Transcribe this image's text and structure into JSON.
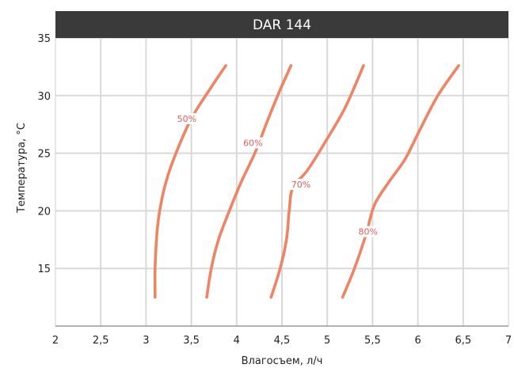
{
  "chart_data": {
    "type": "line",
    "title": "DAR 144",
    "xlabel": "Влагосъем, л/ч",
    "ylabel": "Температура, °С",
    "xlim": [
      2,
      7
    ],
    "ylim": [
      10,
      35
    ],
    "x_ticks": [
      "2",
      "2,5",
      "3",
      "3,5",
      "4",
      "4,5",
      "5",
      "5,5",
      "6",
      "6,5",
      "7"
    ],
    "y_ticks": [
      "15",
      "20",
      "25",
      "30",
      "35"
    ],
    "grid": true,
    "colors": {
      "series": "#ef8464",
      "label_text": "#e35a5a",
      "title_bar": "#3a3a3a"
    },
    "series": [
      {
        "name": "50%",
        "label_at": [
          3.45,
          28
        ],
        "points": [
          [
            3.1,
            12.5
          ],
          [
            3.1,
            15
          ],
          [
            3.12,
            18
          ],
          [
            3.15,
            20
          ],
          [
            3.22,
            22.5
          ],
          [
            3.33,
            25
          ],
          [
            3.5,
            28
          ],
          [
            3.7,
            30.5
          ],
          [
            3.88,
            32.6
          ]
        ]
      },
      {
        "name": "60%",
        "label_at": [
          4.18,
          25.9
        ],
        "points": [
          [
            3.67,
            12.5
          ],
          [
            3.72,
            15
          ],
          [
            3.8,
            17.5
          ],
          [
            3.92,
            20
          ],
          [
            4.05,
            22.5
          ],
          [
            4.2,
            25
          ],
          [
            4.35,
            28
          ],
          [
            4.48,
            30.5
          ],
          [
            4.6,
            32.6
          ]
        ]
      },
      {
        "name": "70%",
        "label_at": [
          4.71,
          22.3
        ],
        "points": [
          [
            4.38,
            12.5
          ],
          [
            4.48,
            15
          ],
          [
            4.55,
            17.5
          ],
          [
            4.58,
            20
          ],
          [
            4.62,
            22
          ],
          [
            4.78,
            23.5
          ],
          [
            4.98,
            26
          ],
          [
            5.2,
            29
          ],
          [
            5.4,
            32.6
          ]
        ]
      },
      {
        "name": "80%",
        "label_at": [
          5.45,
          18.2
        ],
        "points": [
          [
            5.17,
            12.5
          ],
          [
            5.3,
            15
          ],
          [
            5.43,
            18
          ],
          [
            5.52,
            20.5
          ],
          [
            5.68,
            22.5
          ],
          [
            5.86,
            24.5
          ],
          [
            6.02,
            27
          ],
          [
            6.22,
            30
          ],
          [
            6.45,
            32.6
          ]
        ]
      }
    ]
  }
}
